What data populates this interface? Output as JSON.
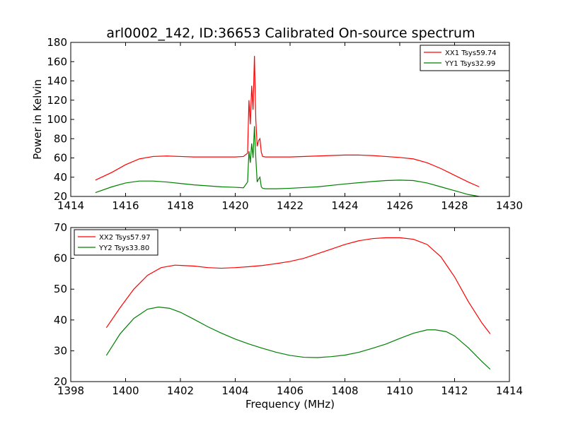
{
  "chart_data": [
    {
      "type": "line",
      "title": "arl0002_142, ID:36653 Calibrated On-source spectrum",
      "xlabel": "",
      "ylabel": "Power in Kelvin",
      "xlim": [
        1414,
        1430
      ],
      "ylim": [
        20,
        180
      ],
      "xticks": [
        1414,
        1416,
        1418,
        1420,
        1422,
        1424,
        1426,
        1428,
        1430
      ],
      "yticks": [
        20,
        40,
        60,
        80,
        100,
        120,
        140,
        160,
        180
      ],
      "legend_position": "top-right",
      "grid": false,
      "series": [
        {
          "name": "XX1 Tsys59.74",
          "color": "#ff0000",
          "x": [
            1414.9,
            1415.5,
            1416.0,
            1416.5,
            1417.0,
            1417.5,
            1418.0,
            1418.5,
            1419.0,
            1419.5,
            1420.0,
            1420.3,
            1420.45,
            1420.5,
            1420.55,
            1420.6,
            1420.65,
            1420.7,
            1420.75,
            1420.8,
            1420.85,
            1420.9,
            1420.95,
            1421.0,
            1421.1,
            1421.5,
            1422.0,
            1423.0,
            1424.0,
            1424.5,
            1425.0,
            1426.0,
            1426.5,
            1427.0,
            1427.5,
            1428.0,
            1428.5,
            1428.9
          ],
          "values": [
            37,
            45,
            53,
            59,
            61.5,
            62,
            61.5,
            61,
            61,
            61,
            61,
            61.5,
            65,
            120,
            95,
            135,
            110,
            166,
            100,
            72,
            78,
            80,
            66,
            61.5,
            61,
            61,
            61,
            62,
            63,
            63,
            62.5,
            60.5,
            59,
            55,
            49,
            42,
            35,
            30
          ]
        },
        {
          "name": "YY1 Tsys32.99",
          "color": "#008000",
          "x": [
            1414.9,
            1415.5,
            1416.0,
            1416.5,
            1417.0,
            1417.5,
            1418.0,
            1418.5,
            1419.0,
            1419.5,
            1420.0,
            1420.3,
            1420.45,
            1420.5,
            1420.55,
            1420.6,
            1420.65,
            1420.7,
            1420.75,
            1420.8,
            1420.85,
            1420.9,
            1420.95,
            1421.0,
            1421.1,
            1421.5,
            1422.0,
            1423.0,
            1424.0,
            1425.0,
            1425.5,
            1426.0,
            1426.5,
            1427.0,
            1427.5,
            1428.0,
            1428.5,
            1428.9
          ],
          "values": [
            24,
            30,
            34,
            36,
            36,
            35,
            33.5,
            32,
            31,
            30,
            29.5,
            29,
            35,
            67,
            55,
            75,
            60,
            93,
            60,
            35,
            38,
            40,
            30,
            28.5,
            28,
            28,
            28.5,
            30,
            33,
            35.5,
            36.5,
            37,
            36.5,
            34,
            30,
            26,
            22,
            20
          ]
        }
      ]
    },
    {
      "type": "line",
      "title": "",
      "xlabel": "Frequency (MHz)",
      "ylabel": "",
      "xlim": [
        1398,
        1414
      ],
      "ylim": [
        20,
        70
      ],
      "xticks": [
        1398,
        1400,
        1402,
        1404,
        1406,
        1408,
        1410,
        1412,
        1414
      ],
      "yticks": [
        20,
        30,
        40,
        50,
        60,
        70
      ],
      "legend_position": "top-left",
      "grid": false,
      "series": [
        {
          "name": "XX2 Tsys57.97",
          "color": "#ff0000",
          "x": [
            1399.3,
            1399.8,
            1400.3,
            1400.8,
            1401.3,
            1401.8,
            1402.5,
            1403.0,
            1403.5,
            1404.0,
            1404.5,
            1405.0,
            1405.5,
            1406.0,
            1406.5,
            1407.0,
            1407.5,
            1408.0,
            1408.5,
            1409.0,
            1409.5,
            1410.0,
            1410.5,
            1411.0,
            1411.5,
            1412.0,
            1412.5,
            1413.0,
            1413.3
          ],
          "values": [
            37.5,
            44,
            50,
            54.5,
            57,
            57.8,
            57.5,
            57,
            56.8,
            57,
            57.3,
            57.7,
            58.3,
            59,
            60,
            61.5,
            63,
            64.5,
            65.7,
            66.4,
            66.7,
            66.7,
            66.2,
            64.5,
            60.5,
            54,
            46,
            39,
            35.5
          ]
        },
        {
          "name": "YY2 Tsys33.80",
          "color": "#008000",
          "x": [
            1399.3,
            1399.8,
            1400.3,
            1400.8,
            1401.2,
            1401.6,
            1402.0,
            1402.5,
            1403.0,
            1403.5,
            1404.0,
            1404.5,
            1405.0,
            1405.5,
            1406.0,
            1406.5,
            1407.0,
            1407.5,
            1408.0,
            1408.5,
            1409.0,
            1409.5,
            1410.0,
            1410.5,
            1411.0,
            1411.3,
            1411.7,
            1412.0,
            1412.5,
            1413.0,
            1413.3
          ],
          "values": [
            28.5,
            35.5,
            40.5,
            43.5,
            44.2,
            43.8,
            42.5,
            40.2,
            37.8,
            35.7,
            33.8,
            32.2,
            30.8,
            29.5,
            28.5,
            27.9,
            27.8,
            28.1,
            28.6,
            29.5,
            30.8,
            32.2,
            34,
            35.7,
            36.8,
            36.8,
            36.2,
            34.8,
            31,
            26.5,
            24
          ]
        }
      ]
    }
  ]
}
